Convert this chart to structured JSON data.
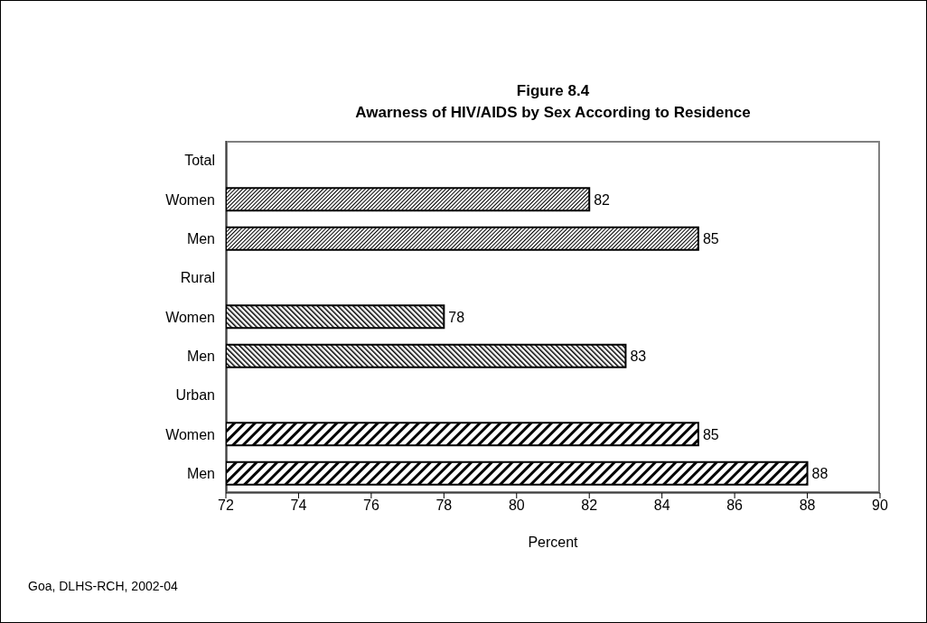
{
  "chart_data": {
    "type": "bar",
    "orientation": "horizontal",
    "title": "Figure 8.4\nAwarness of HIV/AIDS by Sex According to Residence",
    "xlabel": "Percent",
    "categories": [
      "Total",
      "Women",
      "Men",
      "Rural",
      "Women",
      "Men",
      "Urban",
      "Women",
      "Men"
    ],
    "values": [
      null,
      82,
      85,
      null,
      78,
      83,
      null,
      85,
      88
    ],
    "colors": [
      "#000000",
      "#000000",
      "#000000",
      "#000000",
      "#000000",
      "#000000",
      "#000000",
      "#000000",
      "#000000"
    ],
    "xlim": [
      72,
      90
    ],
    "xticks": [
      72,
      74,
      76,
      78,
      80,
      82,
      84,
      86,
      88,
      90
    ],
    "data_labels": true,
    "annotations": [
      "Goa, DLHS-RCH, 2002-04"
    ]
  }
}
